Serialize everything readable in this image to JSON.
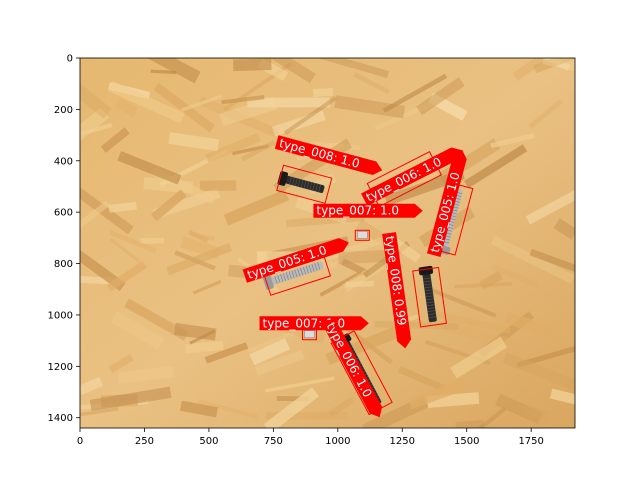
{
  "image": {
    "description_colors": {
      "wood_base": "#e2b06a",
      "wood_light": "#f2d396",
      "wood_dark": "#b98646"
    },
    "x_range": [
      0,
      1920
    ],
    "y_range": [
      1440,
      0
    ]
  },
  "axes": {
    "x_ticks": [
      0,
      250,
      500,
      750,
      1000,
      1250,
      1500,
      1750
    ],
    "y_ticks": [
      0,
      200,
      400,
      600,
      800,
      1000,
      1200,
      1400
    ]
  },
  "detections": [
    {
      "label": "type_008: 1.0",
      "angle": 15,
      "box": [
        [
          775,
          447
        ],
        [
          965,
          536
        ]
      ],
      "text_anchor": [
        770,
        345
      ],
      "text_angle": 15,
      "object": "bolt-black"
    },
    {
      "label": "type_006: 1.0",
      "angle": -27,
      "box": [
        [
          1118,
          548
        ],
        [
          1398,
          395
        ]
      ],
      "text_anchor": [
        1120,
        560
      ],
      "text_angle": -27,
      "object": "bolt-black"
    },
    {
      "label": "type_005: 1.0",
      "angle": -75,
      "box": [
        [
          1395,
          775
        ],
        [
          1486,
          474
        ]
      ],
      "text_anchor": [
        1390,
        760
      ],
      "text_angle": -75,
      "object": "bolt-silver"
    },
    {
      "label": "type_007: 1.0",
      "angle": 0,
      "box": [
        [
          1065,
          680
        ],
        [
          1125,
          700
        ]
      ],
      "text_anchor": [
        917,
        610
      ],
      "text_angle": 0,
      "object": "nut"
    },
    {
      "label": "type_005: 1.0",
      "angle": -18,
      "box": [
        [
          705,
          885
        ],
        [
          975,
          790
        ]
      ],
      "text_anchor": [
        655,
        860
      ],
      "text_angle": -18,
      "object": "bolt-silver"
    },
    {
      "label": "type_008: 0.99",
      "angle": 82,
      "box": [
        [
          1290,
          820
        ],
        [
          1422,
          1042
        ]
      ],
      "text_anchor": [
        1185,
        695
      ],
      "text_angle": 82,
      "object": "bolt-black"
    },
    {
      "label": "type_007: 1.0",
      "angle": 0,
      "box": [
        [
          855,
          1067
        ],
        [
          925,
          1087
        ]
      ],
      "text_anchor": [
        708,
        1048
      ],
      "text_angle": 0,
      "object": "nut"
    },
    {
      "label": "type_006: 1.0",
      "angle": 62,
      "box": [
        [
          1000,
          1065
        ],
        [
          1185,
          1385
        ]
      ],
      "text_anchor": [
        955,
        1040
      ],
      "text_angle": 62,
      "object": "bolt-black"
    }
  ]
}
